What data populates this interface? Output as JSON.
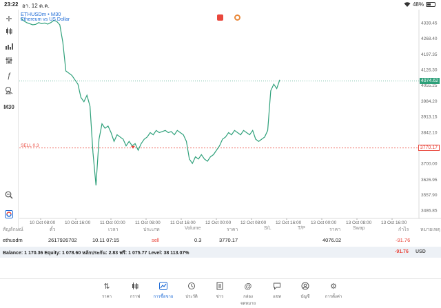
{
  "status_bar": {
    "time": "23:22",
    "date": "อา. 12 ต.ค.",
    "battery": "48%",
    "battery_level": 0.48
  },
  "toolbar": {
    "timeframe_label": "M30"
  },
  "chart": {
    "symbol_title": "ETHUSDm • M30",
    "symbol_sub": "Ethereum vs US Dollar",
    "current_price_label": "4074.62",
    "sell_line_label": "SELL 0.3",
    "sell_price_label": "3770.17",
    "y_tick_labels": [
      "4339.45",
      "4268.40",
      "4197.35",
      "4126.30",
      "4055.25",
      "3984.20",
      "3913.15",
      "3842.10",
      "3770.17",
      "3700.00",
      "3626.95",
      "3557.90",
      "3486.85"
    ],
    "x_tick_labels": [
      "10 Oct 08:00",
      "10 Oct 16:00",
      "11 Oct 00:00",
      "11 Oct 08:00",
      "11 Oct 16:00",
      "12 Oct 00:00",
      "12 Oct 08:00",
      "12 Oct 16:00",
      "13 Oct 00:00",
      "13 Oct 08:00",
      "13 Oct 16:00"
    ],
    "colors": {
      "line": "#2ea07a",
      "sell": "#e9473c",
      "accent": "#1e6bd6"
    }
  },
  "chart_data": {
    "type": "line",
    "title": "ETHUSDm • M30",
    "xlabel": "",
    "ylabel": "",
    "ylim": [
      3450,
      4380
    ],
    "series": [
      {
        "values": [
          4360,
          4348,
          4340,
          4335,
          4330,
          4332,
          4340,
          4335,
          4338,
          4333,
          4340,
          4350,
          4345,
          4330,
          4250,
          4120,
          4110,
          4100,
          4080,
          4060,
          4000,
          3980,
          4010,
          3960,
          3750,
          3600,
          3810,
          3880,
          3860,
          3870,
          3840,
          3800,
          3830,
          3820,
          3810,
          3780,
          3800,
          3780,
          3790,
          3760,
          3790,
          3810,
          3820,
          3840,
          3830,
          3850,
          3840,
          3845,
          3850,
          3840,
          3845,
          3830,
          3850,
          3840,
          3830,
          3800,
          3720,
          3700,
          3730,
          3720,
          3740,
          3720,
          3710,
          3730,
          3740,
          3760,
          3780,
          3810,
          3820,
          3840,
          3830,
          3850,
          3840,
          3830,
          3850,
          3840,
          3830,
          3850,
          3810,
          3800,
          3810,
          3820,
          3850,
          4030,
          4060,
          4040,
          4080
        ]
      }
    ],
    "current_price": 4074.62,
    "sell_price": 3770.17,
    "grid": false
  },
  "table": {
    "headers": [
      "สัญลักษณ์",
      "ตั๋ว",
      "เวลา",
      "ประเภท",
      "Volume",
      "ราคา",
      "S/L",
      "T/P",
      "ราคา",
      "Swap",
      "กำไร",
      "หมายเหตุ"
    ],
    "row": {
      "symbol": "ethusdm",
      "ticket": "2617926702",
      "time": "10.11 07:15",
      "type": "sell",
      "volume": "0.3",
      "open_price": "3770.17",
      "current_price": "4076.02",
      "profit": "-91.76"
    },
    "balance": {
      "text": "Balance: 1 170.36 Equity: 1 078.60 หลักประกัน: 2.83 ฟรี: 1 075.77 Level: 38 113.07%",
      "profit": "-91.76",
      "currency": "USD"
    }
  },
  "nav": [
    {
      "icon": "quotes-icon",
      "label": "ราคา"
    },
    {
      "icon": "charts-icon",
      "label": "กราฟ"
    },
    {
      "icon": "trade-icon",
      "label": "การซื้อขาย"
    },
    {
      "icon": "history-icon",
      "label": "ประวัติ"
    },
    {
      "icon": "news-icon",
      "label": "ข่าว"
    },
    {
      "icon": "mailbox-icon",
      "label": "กล่องจดหมาย"
    },
    {
      "icon": "chat-icon",
      "label": "แชท"
    },
    {
      "icon": "accounts-icon",
      "label": "บัญชี"
    },
    {
      "icon": "settings-icon",
      "label": "การตั้งค่า"
    }
  ],
  "nav_active": "การซื้อขาย"
}
